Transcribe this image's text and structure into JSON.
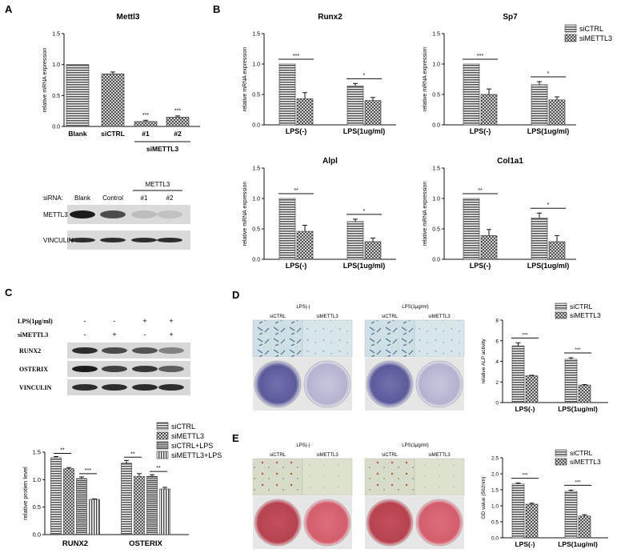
{
  "panel_letters": {
    "A": "A",
    "B": "B",
    "C": "C",
    "D": "D",
    "E": "E"
  },
  "colors": {
    "hatch": "#444444",
    "axis": "#111111",
    "blot_band": "#222222",
    "blot_bg": "#dcdcdc",
    "alp_well": "#6b69a8",
    "ars_well": "#c8505a"
  },
  "chart_data": [
    {
      "id": "mettl3",
      "type": "bar",
      "title": "Mettl3",
      "ylabel": "relative mRNA expression",
      "categories": [
        "Blank",
        "siCTRL",
        "#1",
        "#2"
      ],
      "group_label": "siMETTL3",
      "values": [
        1.0,
        0.85,
        0.08,
        0.15
      ],
      "errors": [
        0.0,
        0.03,
        0.02,
        0.02
      ],
      "significance": [
        "",
        "",
        "***",
        "***"
      ],
      "ylim": [
        0,
        1.5
      ],
      "yticks": [
        "0.0",
        "0.5",
        "1.0",
        "1.5"
      ]
    },
    {
      "id": "runx2",
      "type": "bar",
      "title": "Runx2",
      "ylabel": "relative mRNA expression",
      "categories": [
        "LPS(-)",
        "LPS(1ug/ml)"
      ],
      "series": [
        {
          "name": "siCTRL",
          "values": [
            1.0,
            0.64
          ],
          "errors": [
            0.0,
            0.04
          ]
        },
        {
          "name": "siMETTL3",
          "values": [
            0.43,
            0.4
          ],
          "errors": [
            0.1,
            0.05
          ]
        }
      ],
      "significance": [
        "***",
        "*"
      ],
      "ylim": [
        0,
        1.5
      ],
      "yticks": [
        "0.0",
        "0.5",
        "1.0",
        "1.5"
      ]
    },
    {
      "id": "sp7",
      "type": "bar",
      "title": "Sp7",
      "ylabel": "relative mRNA expression",
      "categories": [
        "LPS(-)",
        "LPS(1ug/ml)"
      ],
      "series": [
        {
          "name": "siCTRL",
          "values": [
            1.0,
            0.66
          ],
          "errors": [
            0.0,
            0.05
          ]
        },
        {
          "name": "siMETTL3",
          "values": [
            0.5,
            0.41
          ],
          "errors": [
            0.09,
            0.05
          ]
        }
      ],
      "significance": [
        "***",
        "*"
      ],
      "ylim": [
        0,
        1.5
      ],
      "yticks": [
        "0.0",
        "0.5",
        "1.0",
        "1.5"
      ]
    },
    {
      "id": "alpl",
      "type": "bar",
      "title": "Alpl",
      "ylabel": "relative mRNA expression",
      "categories": [
        "LPS(-)",
        "LPS(1ug/ml)"
      ],
      "series": [
        {
          "name": "siCTRL",
          "values": [
            1.0,
            0.62
          ],
          "errors": [
            0.0,
            0.04
          ]
        },
        {
          "name": "siMETTL3",
          "values": [
            0.46,
            0.29
          ],
          "errors": [
            0.1,
            0.06
          ]
        }
      ],
      "significance": [
        "**",
        "*"
      ],
      "ylim": [
        0,
        1.5
      ],
      "yticks": [
        "0.0",
        "0.5",
        "1.0",
        "1.5"
      ]
    },
    {
      "id": "col1a1",
      "type": "bar",
      "title": "Col1a1",
      "ylabel": "relative mRNA expression",
      "categories": [
        "LPS(-)",
        "LPS(1ug/ml)"
      ],
      "series": [
        {
          "name": "siCTRL",
          "values": [
            1.0,
            0.68
          ],
          "errors": [
            0.0,
            0.08
          ]
        },
        {
          "name": "siMETTL3",
          "values": [
            0.39,
            0.29
          ],
          "errors": [
            0.1,
            0.1
          ]
        }
      ],
      "significance": [
        "**",
        "*"
      ],
      "ylim": [
        0,
        1.5
      ],
      "yticks": [
        "0.0",
        "0.5",
        "1.0",
        "1.5"
      ]
    },
    {
      "id": "protein",
      "type": "bar",
      "ylabel": "relative protien level",
      "categories": [
        "RUNX2",
        "OSTERIX"
      ],
      "series": [
        {
          "name": "siCTRL",
          "values": [
            1.4,
            1.3
          ],
          "errors": [
            0.02,
            0.05
          ]
        },
        {
          "name": "siMETTL3",
          "values": [
            1.2,
            1.06
          ],
          "errors": [
            0.02,
            0.05
          ]
        },
        {
          "name": "siCTRL+LPS",
          "values": [
            1.02,
            1.06
          ],
          "errors": [
            0.03,
            0.03
          ]
        },
        {
          "name": "siMETTL3+LPS",
          "values": [
            0.64,
            0.83
          ],
          "errors": [
            0.01,
            0.03
          ]
        }
      ],
      "significance": [
        [
          "**",
          "***"
        ],
        [
          "**",
          "**"
        ]
      ],
      "ylim": [
        0,
        1.5
      ],
      "yticks": [
        "0.0",
        "0.5",
        "1.0",
        "1.5"
      ]
    },
    {
      "id": "alp",
      "type": "bar",
      "ylabel": "relative ALP activity",
      "categories": [
        "LPS(-)",
        "LPS(1ug/ml)"
      ],
      "series": [
        {
          "name": "siCTRL",
          "values": [
            5.5,
            4.2
          ],
          "errors": [
            0.3,
            0.15
          ]
        },
        {
          "name": "siMETTL3",
          "values": [
            2.6,
            1.7
          ],
          "errors": [
            0.05,
            0.05
          ]
        }
      ],
      "significance": [
        "***",
        "***"
      ],
      "ylim": [
        0,
        8
      ],
      "yticks": [
        "0",
        "2",
        "4",
        "6",
        "8"
      ]
    },
    {
      "id": "ars",
      "type": "bar",
      "ylabel": "OD value (562nm)",
      "categories": [
        "LPS(-)",
        "LPS(1ug/ml)"
      ],
      "series": [
        {
          "name": "siCTRL",
          "values": [
            1.68,
            1.45
          ],
          "errors": [
            0.03,
            0.04
          ]
        },
        {
          "name": "siMETTL3",
          "values": [
            1.05,
            0.68
          ],
          "errors": [
            0.03,
            0.04
          ]
        }
      ],
      "significance": [
        "***",
        "***"
      ],
      "ylim": [
        0,
        2.5
      ],
      "yticks": [
        "0.0",
        "0.5",
        "1.0",
        "1.5",
        "2.0",
        "2.5"
      ]
    }
  ],
  "legend_b": [
    "siCTRL",
    "siMETTL3"
  ],
  "blot_a": {
    "sirna_label": "siRNA:",
    "lanes": [
      "Blank",
      "Control",
      "#1",
      "#2"
    ],
    "group": "METTL3",
    "rows": [
      "METTL3",
      "VINCULIN"
    ],
    "intensity": [
      [
        1.0,
        0.75,
        0.15,
        0.12
      ],
      [
        0.9,
        0.9,
        0.9,
        0.9
      ]
    ]
  },
  "blot_c": {
    "conds": [
      {
        "label": "LPS(1μg/ml)",
        "marks": [
          "-",
          "-",
          "+",
          "+"
        ]
      },
      {
        "label": "siMETTL3",
        "marks": [
          "-",
          "+",
          "-",
          "+"
        ]
      }
    ],
    "rows": [
      "RUNX2",
      "OSTERIX",
      "VINCULIN"
    ],
    "intensity": [
      [
        0.9,
        0.75,
        0.7,
        0.45
      ],
      [
        1.0,
        0.8,
        0.85,
        0.65
      ],
      [
        0.9,
        0.9,
        0.9,
        0.9
      ]
    ]
  },
  "stain_d": {
    "groups": [
      "LPS(-)",
      "LPS(1μg/ml)"
    ],
    "wells": [
      "siCTRL",
      "siMETTL3",
      "siCTRL",
      "siMETTL3"
    ]
  },
  "stain_e": {
    "groups": [
      "LPS(-)",
      "LPS(1μg/ml)"
    ],
    "wells": [
      "siCTRL",
      "siMETTL3",
      "siCTRL",
      "siMETTL3"
    ]
  }
}
